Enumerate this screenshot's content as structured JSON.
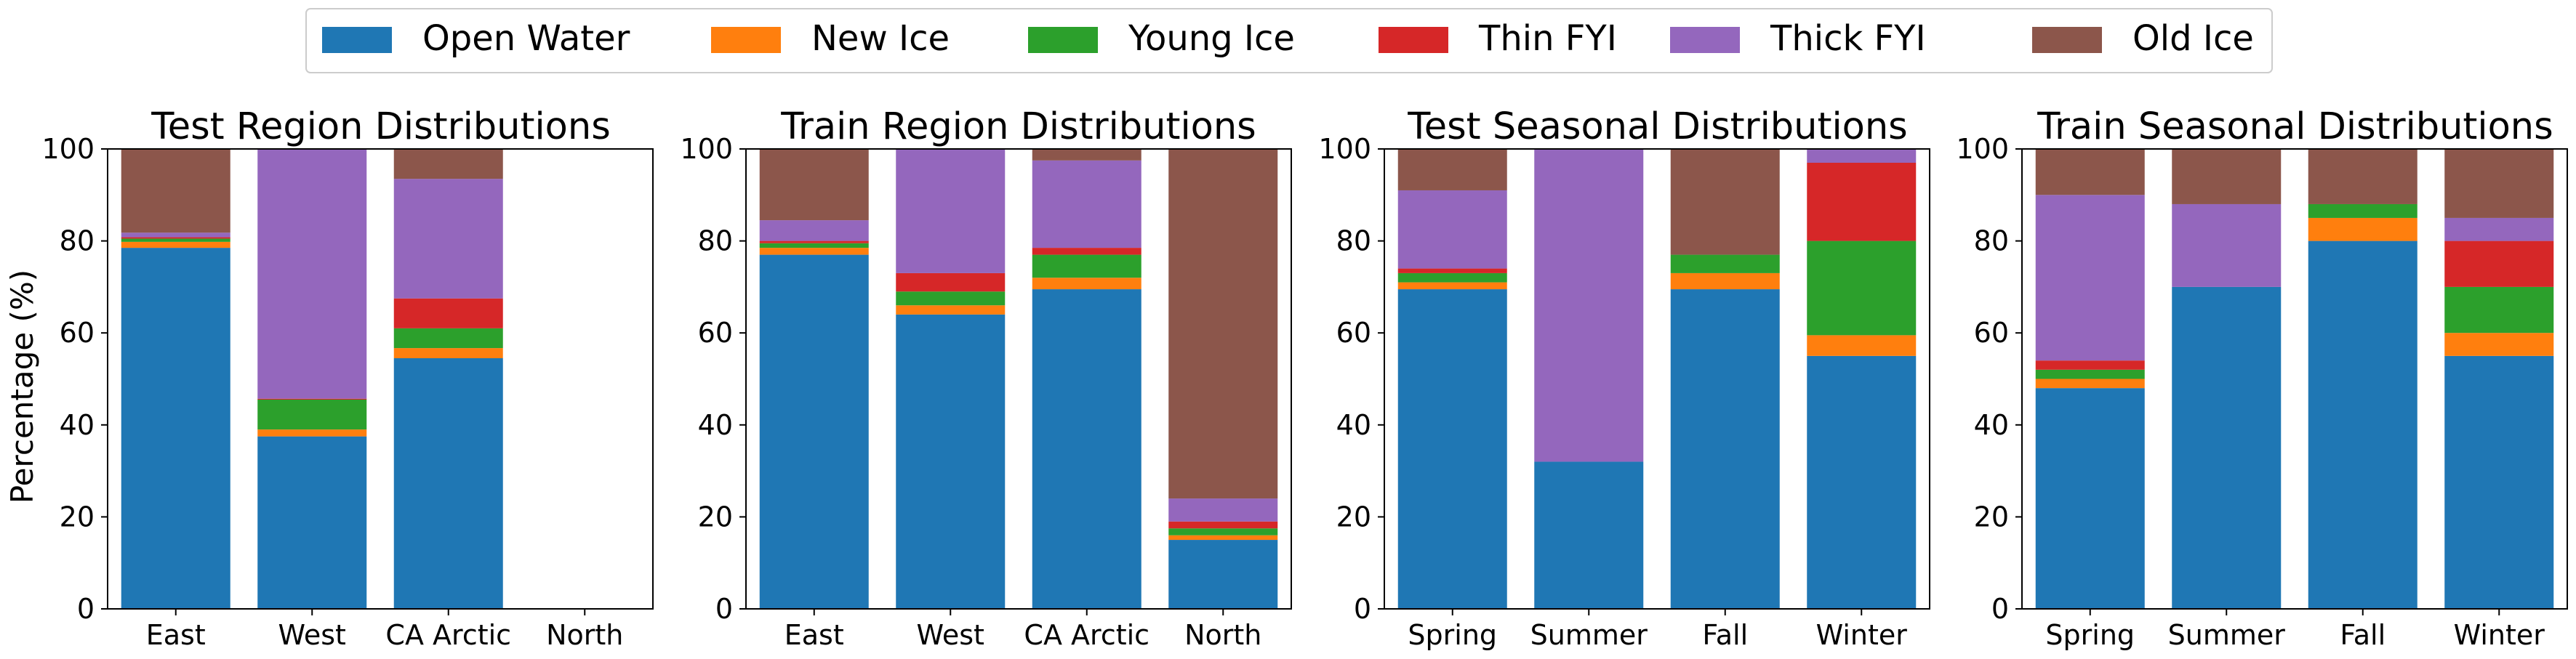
{
  "legend": {
    "items": [
      {
        "label": "Open Water",
        "color": "#1f77b4"
      },
      {
        "label": "New Ice",
        "color": "#ff7f0e"
      },
      {
        "label": "Young Ice",
        "color": "#2ca02c"
      },
      {
        "label": "Thin FYI",
        "color": "#d62728"
      },
      {
        "label": "Thick FYI",
        "color": "#9467bd"
      },
      {
        "label": "Old Ice",
        "color": "#8c564b"
      }
    ]
  },
  "chart_data": [
    {
      "type": "bar",
      "stacked": true,
      "title": "Test Region Distributions",
      "xlabel": "",
      "ylabel": "Percentage (%)",
      "ylim": [
        0,
        100
      ],
      "yticks": [
        "0",
        "20",
        "40",
        "60",
        "80",
        "100"
      ],
      "categories": [
        "East",
        "West",
        "CA Arctic",
        "North"
      ],
      "series": [
        {
          "name": "Open Water",
          "values": [
            78.5,
            37.5,
            54.5,
            0
          ]
        },
        {
          "name": "New Ice",
          "values": [
            1.3,
            1.5,
            2.2,
            0
          ]
        },
        {
          "name": "Young Ice",
          "values": [
            0.7,
            6.5,
            4.3,
            0
          ]
        },
        {
          "name": "Thin FYI",
          "values": [
            0.3,
            0.2,
            6.5,
            0
          ]
        },
        {
          "name": "Thick FYI",
          "values": [
            1.0,
            54.3,
            26.0,
            0
          ]
        },
        {
          "name": "Old Ice",
          "values": [
            18.2,
            0,
            6.5,
            0
          ]
        }
      ]
    },
    {
      "type": "bar",
      "stacked": true,
      "title": "Train Region Distributions",
      "xlabel": "",
      "ylabel": "",
      "ylim": [
        0,
        100
      ],
      "yticks": [
        "0",
        "20",
        "40",
        "60",
        "80",
        "100"
      ],
      "categories": [
        "East",
        "West",
        "CA Arctic",
        "North"
      ],
      "series": [
        {
          "name": "Open Water",
          "values": [
            77.0,
            64.0,
            69.5,
            15.0
          ]
        },
        {
          "name": "New Ice",
          "values": [
            1.5,
            2.0,
            2.5,
            1.0
          ]
        },
        {
          "name": "Young Ice",
          "values": [
            1.0,
            3.0,
            5.0,
            1.5
          ]
        },
        {
          "name": "Thin FYI",
          "values": [
            0.5,
            4.0,
            1.5,
            1.5
          ]
        },
        {
          "name": "Thick FYI",
          "values": [
            4.5,
            27.0,
            19.0,
            5.0
          ]
        },
        {
          "name": "Old Ice",
          "values": [
            15.5,
            0,
            2.5,
            76.0
          ]
        }
      ]
    },
    {
      "type": "bar",
      "stacked": true,
      "title": "Test Seasonal Distributions",
      "xlabel": "",
      "ylabel": "",
      "ylim": [
        0,
        100
      ],
      "yticks": [
        "0",
        "20",
        "40",
        "60",
        "80",
        "100"
      ],
      "categories": [
        "Spring",
        "Summer",
        "Fall",
        "Winter"
      ],
      "series": [
        {
          "name": "Open Water",
          "values": [
            69.5,
            32.0,
            69.5,
            55.0
          ]
        },
        {
          "name": "New Ice",
          "values": [
            1.5,
            0,
            3.5,
            4.5
          ]
        },
        {
          "name": "Young Ice",
          "values": [
            2.0,
            0,
            4.0,
            20.5
          ]
        },
        {
          "name": "Thin FYI",
          "values": [
            1.0,
            0,
            0,
            17.0
          ]
        },
        {
          "name": "Thick FYI",
          "values": [
            17.0,
            68.0,
            0,
            3.0
          ]
        },
        {
          "name": "Old Ice",
          "values": [
            9.0,
            0,
            23.0,
            0
          ]
        }
      ]
    },
    {
      "type": "bar",
      "stacked": true,
      "title": "Train Seasonal Distributions",
      "xlabel": "",
      "ylabel": "",
      "ylim": [
        0,
        100
      ],
      "yticks": [
        "0",
        "20",
        "40",
        "60",
        "80",
        "100"
      ],
      "categories": [
        "Spring",
        "Summer",
        "Fall",
        "Winter"
      ],
      "series": [
        {
          "name": "Open Water",
          "values": [
            48.0,
            70.0,
            80.0,
            55.0
          ]
        },
        {
          "name": "New Ice",
          "values": [
            2.0,
            0,
            5.0,
            5.0
          ]
        },
        {
          "name": "Young Ice",
          "values": [
            2.0,
            0,
            3.0,
            10.0
          ]
        },
        {
          "name": "Thin FYI",
          "values": [
            2.0,
            0,
            0,
            10.0
          ]
        },
        {
          "name": "Thick FYI",
          "values": [
            36.0,
            18.0,
            0,
            5.0
          ]
        },
        {
          "name": "Old Ice",
          "values": [
            10.0,
            12.0,
            12.0,
            15.0
          ]
        }
      ]
    }
  ]
}
